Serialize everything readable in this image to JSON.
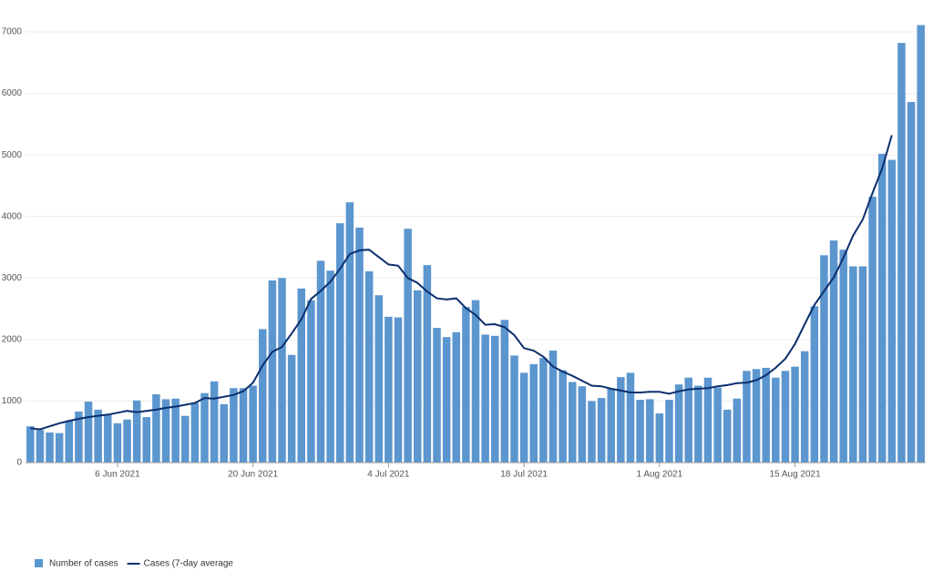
{
  "chart_data": {
    "type": "bar-line",
    "categories": [
      null,
      null,
      null,
      null,
      null,
      null,
      null,
      null,
      null,
      "6 Jun 2021",
      null,
      null,
      null,
      null,
      null,
      null,
      null,
      null,
      null,
      null,
      null,
      null,
      null,
      "20 Jun 2021",
      null,
      null,
      null,
      null,
      null,
      null,
      null,
      null,
      null,
      null,
      null,
      null,
      null,
      "4 Jul 2021",
      null,
      null,
      null,
      null,
      null,
      null,
      null,
      null,
      null,
      null,
      null,
      null,
      null,
      "18 Jul 2021",
      null,
      null,
      null,
      null,
      null,
      null,
      null,
      null,
      null,
      null,
      null,
      null,
      null,
      "1 Aug 2021",
      null,
      null,
      null,
      null,
      null,
      null,
      null,
      null,
      null,
      null,
      null,
      null,
      null,
      "15 Aug 2021",
      null,
      null,
      null,
      null,
      null,
      null,
      null,
      null,
      null,
      null,
      null,
      null,
      null
    ],
    "series": [
      {
        "name": "Number of cases",
        "type": "bar",
        "color": "#5b96cf",
        "values": [
          590,
          530,
          490,
          480,
          680,
          830,
          990,
          860,
          780,
          640,
          700,
          1010,
          740,
          1110,
          1030,
          1040,
          760,
          970,
          1130,
          1320,
          950,
          1210,
          1210,
          1250,
          2170,
          2960,
          3000,
          1750,
          2830,
          2640,
          3280,
          3120,
          3890,
          4230,
          3820,
          3110,
          2720,
          2370,
          2360,
          3800,
          2800,
          3210,
          2190,
          2040,
          2120,
          2530,
          2640,
          2080,
          2060,
          2320,
          1740,
          1460,
          1600,
          1700,
          1820,
          1500,
          1310,
          1240,
          1000,
          1050,
          1200,
          1390,
          1460,
          1020,
          1030,
          800,
          1020,
          1270,
          1380,
          1250,
          1380,
          1220,
          860,
          1040,
          1490,
          1520,
          1540,
          1380,
          1490,
          1560,
          1810,
          2540,
          3370,
          3610,
          3460,
          3190,
          3190,
          4320,
          5020,
          4920,
          6820,
          5860,
          7110
        ]
      },
      {
        "name": "Cases (7-day average",
        "type": "line",
        "color": "#0d2f6e",
        "values": [
          560,
          540,
          590,
          640,
          680,
          710,
          740,
          760,
          780,
          810,
          840,
          820,
          840,
          860,
          890,
          910,
          940,
          970,
          1050,
          1040,
          1070,
          1100,
          1160,
          1300,
          1580,
          1800,
          1880,
          2100,
          2330,
          2660,
          2790,
          2940,
          3150,
          3390,
          3450,
          3460,
          3340,
          3220,
          3200,
          3000,
          2920,
          2780,
          2670,
          2650,
          2670,
          2510,
          2400,
          2240,
          2250,
          2200,
          2070,
          1860,
          1820,
          1720,
          1560,
          1480,
          1410,
          1330,
          1250,
          1240,
          1200,
          1170,
          1140,
          1140,
          1150,
          1150,
          1120,
          1160,
          1190,
          1200,
          1210,
          1240,
          1260,
          1290,
          1300,
          1340,
          1420,
          1540,
          1690,
          1930,
          2250,
          2560,
          2790,
          3010,
          3330,
          3690,
          3950,
          4380,
          4780,
          5320,
          null,
          null,
          null
        ]
      }
    ],
    "ylim": [
      0,
      7000
    ],
    "yticks": [
      0,
      1000,
      2000,
      3000,
      4000,
      5000,
      6000,
      7000
    ],
    "grid": true
  }
}
